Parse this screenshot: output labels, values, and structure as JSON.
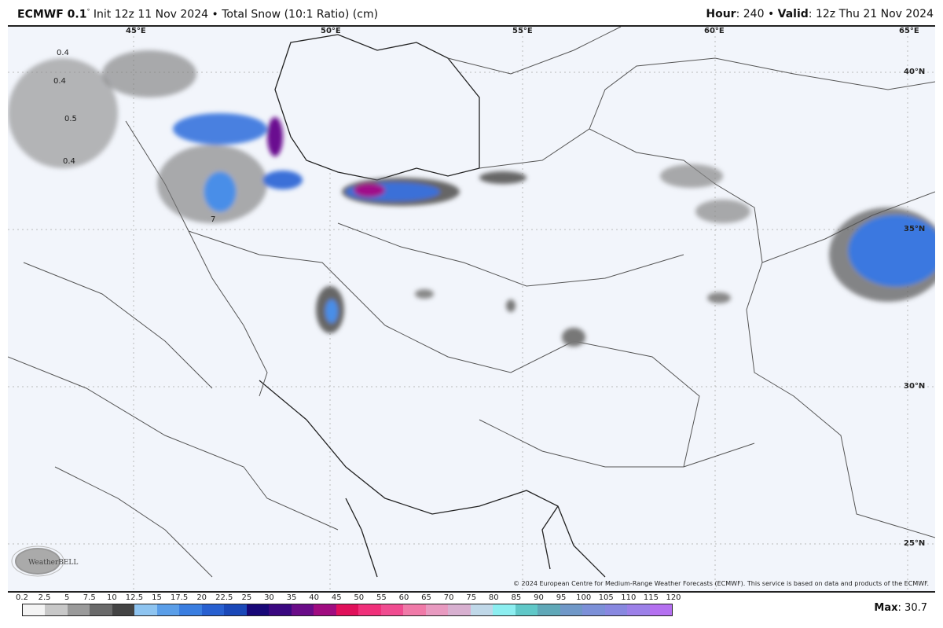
{
  "header": {
    "model": "ECMWF 0.1",
    "degree": "°",
    "init": "Init 12z 11 Nov 2024",
    "sep": "•",
    "product": "Total Snow (10:1 Ratio) (cm)",
    "hour_label": "Hour",
    "hour": "240",
    "valid_label": "Valid",
    "valid": "12z Thu 21 Nov 2024"
  },
  "map": {
    "lon_labels": [
      "45°E",
      "50°E",
      "55°E",
      "60°E",
      "65°E"
    ],
    "lat_labels": [
      "40°N",
      "35°N",
      "30°N",
      "25°N"
    ],
    "value_labels": [
      "0.4",
      "0.4",
      "0.5",
      "0.4",
      "7"
    ],
    "credit": "© 2024 European Centre for Medium-Range Weather Forecasts (ECMWF). This service is based on data and products of the ECMWF.",
    "logo": "WeatherBELL"
  },
  "colorbar": {
    "ticks": [
      "0.2",
      "2.5",
      "5",
      "7.5",
      "10",
      "12.5",
      "15",
      "17.5",
      "20",
      "22.5",
      "25",
      "30",
      "35",
      "40",
      "45",
      "50",
      "55",
      "60",
      "65",
      "70",
      "75",
      "80",
      "85",
      "90",
      "95",
      "100",
      "105",
      "110",
      "115",
      "120"
    ],
    "colors": [
      "#f4f4f4",
      "#c8c8c8",
      "#9a9a9a",
      "#6a6a6a",
      "#444444",
      "#8ec4f0",
      "#5a9ee8",
      "#3a7ee0",
      "#2860d0",
      "#1a48b8",
      "#180878",
      "#3a0880",
      "#6a0c88",
      "#a00c80",
      "#e0105a",
      "#f0307a",
      "#f04c90",
      "#f07aa8",
      "#e89ac0",
      "#d8b0d0",
      "#c0d8e8",
      "#8ceef0",
      "#60c8c8",
      "#60a8b8",
      "#7098c8",
      "#7c90d8",
      "#8888e0",
      "#9c80e8",
      "#b470f0"
    ],
    "max_label": "Max",
    "max_value": "30.7"
  }
}
